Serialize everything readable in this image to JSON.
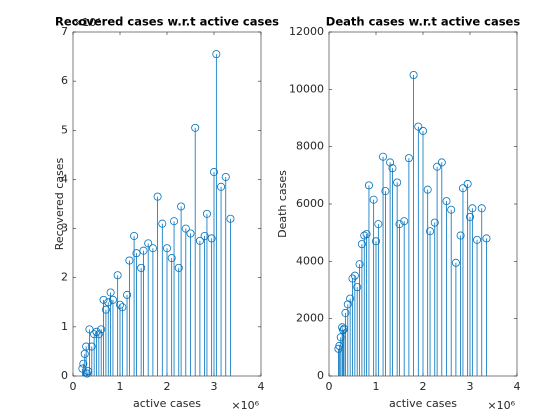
{
  "chart_data": [
    {
      "type": "stem",
      "title": "Recovered cases w.r.t active cases",
      "xlabel": "active cases",
      "ylabel": "Recovered cases",
      "x_exponent": "×10⁶",
      "y_exponent": "×10⁴",
      "color": "#0072bd",
      "xlim": [
        0,
        4000000
      ],
      "xticks": [
        0,
        {
          "value": 1000000,
          "label": "1"
        },
        {
          "value": 2000000,
          "label": "2"
        },
        {
          "value": 3000000,
          "label": "3"
        },
        {
          "value": 4000000,
          "label": "4"
        }
      ],
      "ylim": [
        0,
        70000
      ],
      "yticks": [
        0,
        {
          "value": 10000,
          "label": "1"
        },
        {
          "value": 20000,
          "label": "2"
        },
        {
          "value": 30000,
          "label": "3"
        },
        {
          "value": 40000,
          "label": "4"
        },
        {
          "value": 50000,
          "label": "5"
        },
        {
          "value": 60000,
          "label": "6"
        },
        {
          "value": 70000,
          "label": "7"
        }
      ],
      "x": [
        200000,
        220000,
        250000,
        280000,
        300000,
        320000,
        350000,
        400000,
        450000,
        500000,
        550000,
        600000,
        650000,
        700000,
        750000,
        800000,
        850000,
        950000,
        1000000,
        1050000,
        1150000,
        1200000,
        1300000,
        1350000,
        1450000,
        1500000,
        1600000,
        1700000,
        1800000,
        1900000,
        2000000,
        2100000,
        2150000,
        2250000,
        2300000,
        2400000,
        2500000,
        2600000,
        2700000,
        2800000,
        2850000,
        2950000,
        3000000,
        3050000,
        3150000,
        3250000,
        3350000
      ],
      "values": [
        1500,
        2500,
        4500,
        6000,
        500,
        1000,
        9500,
        6000,
        8500,
        9000,
        8500,
        9500,
        15500,
        13500,
        15000,
        17000,
        15500,
        20500,
        14500,
        14000,
        16500,
        23500,
        28500,
        25000,
        22000,
        25500,
        27000,
        26000,
        36500,
        31000,
        26000,
        24000,
        31500,
        22000,
        34500,
        30000,
        29000,
        50500,
        27500,
        28500,
        33000,
        28000,
        41500,
        65500,
        38500,
        40500,
        32000
      ]
    },
    {
      "type": "stem",
      "title": "Death cases w.r.t active cases",
      "xlabel": "active cases",
      "ylabel": "Death cases",
      "x_exponent": "×10⁶",
      "color": "#0072bd",
      "xlim": [
        0,
        4000000
      ],
      "xticks": [
        0,
        {
          "value": 1000000,
          "label": "1"
        },
        {
          "value": 2000000,
          "label": "2"
        },
        {
          "value": 3000000,
          "label": "3"
        },
        {
          "value": 4000000,
          "label": "4"
        }
      ],
      "ylim": [
        0,
        12000
      ],
      "yticks": [
        0,
        2000,
        4000,
        6000,
        8000,
        10000,
        12000
      ],
      "x": [
        200000,
        220000,
        250000,
        280000,
        300000,
        320000,
        350000,
        400000,
        450000,
        500000,
        550000,
        600000,
        650000,
        700000,
        750000,
        800000,
        850000,
        950000,
        1000000,
        1050000,
        1150000,
        1200000,
        1300000,
        1350000,
        1450000,
        1500000,
        1600000,
        1700000,
        1800000,
        1900000,
        2000000,
        2100000,
        2150000,
        2250000,
        2300000,
        2400000,
        2500000,
        2600000,
        2700000,
        2800000,
        2850000,
        2950000,
        3000000,
        3050000,
        3150000,
        3250000,
        3350000
      ],
      "values": [
        950,
        1050,
        1350,
        1700,
        1600,
        1650,
        2200,
        2500,
        2700,
        3400,
        3500,
        3100,
        3900,
        4600,
        4900,
        4950,
        6650,
        6150,
        4700,
        5300,
        7650,
        6450,
        7450,
        7250,
        6750,
        5300,
        5400,
        7600,
        10500,
        8700,
        8550,
        6500,
        5050,
        5350,
        7300,
        7450,
        6100,
        5800,
        3950,
        4900,
        6550,
        6700,
        5550,
        5850,
        4750,
        5850,
        4800
      ]
    }
  ]
}
